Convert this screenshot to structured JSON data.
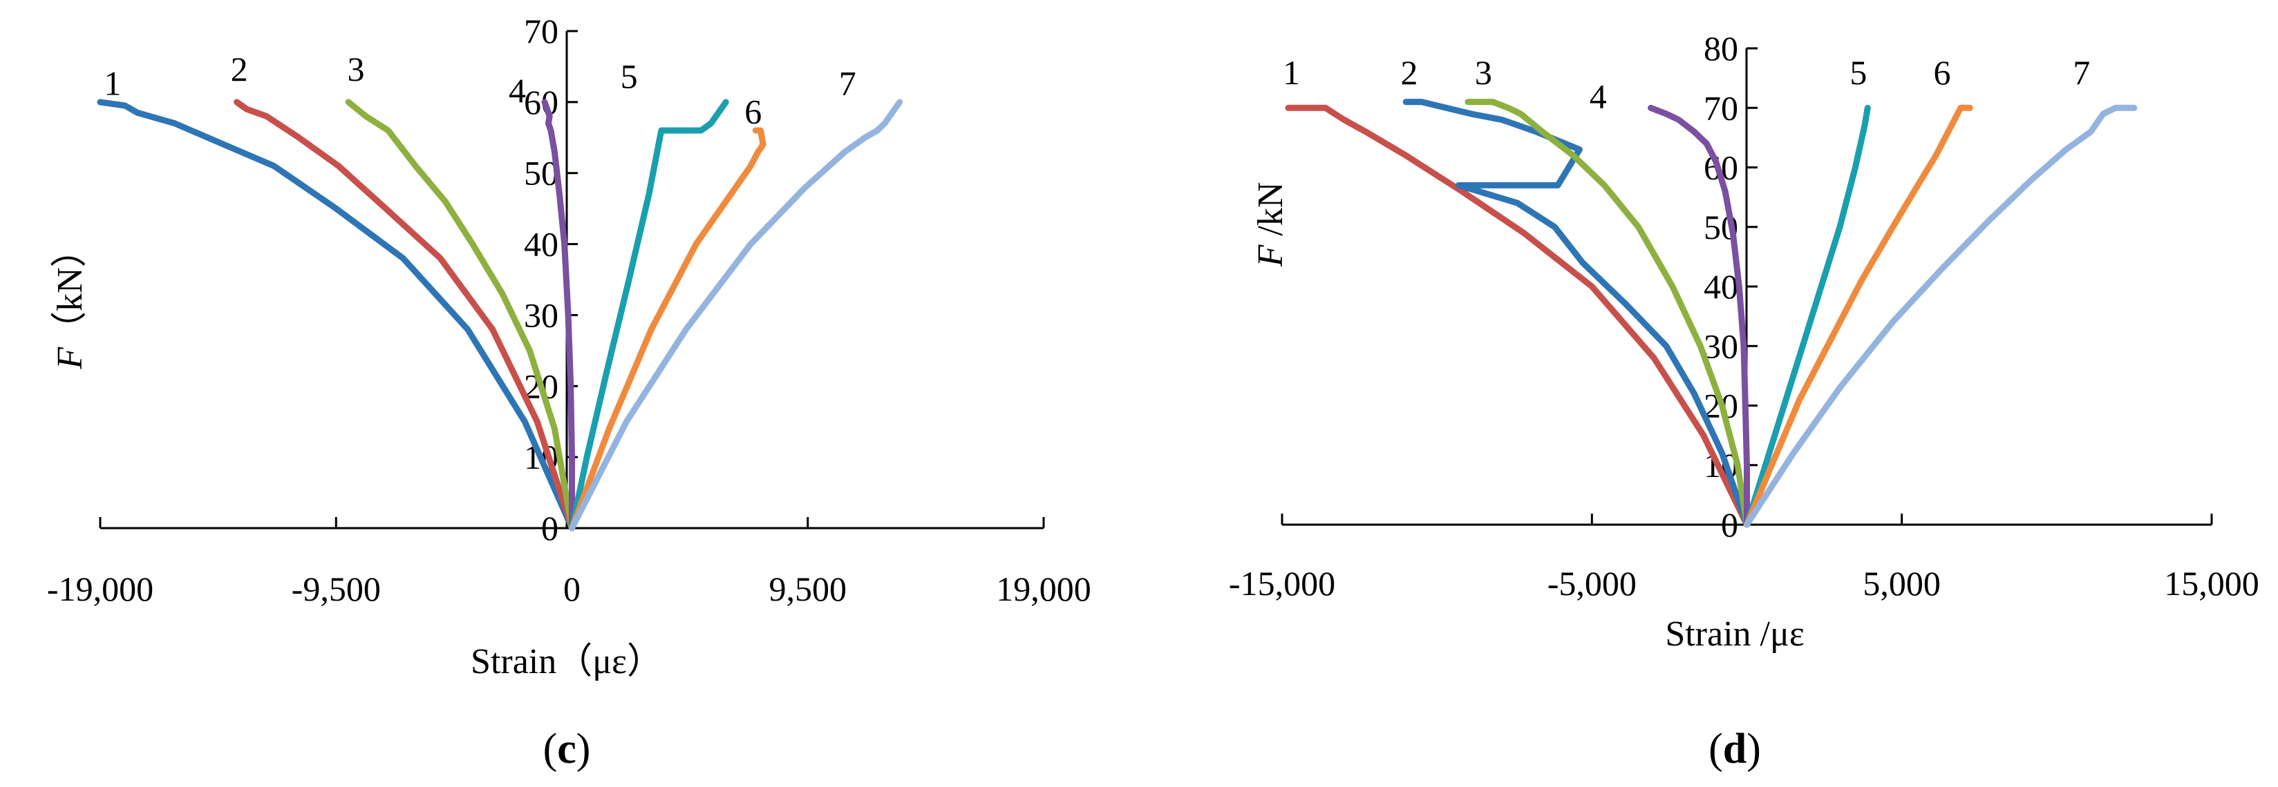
{
  "chart_data": [
    {
      "panel": "c",
      "type": "line",
      "ylabel_italic": "F",
      "ylabel_rest": "（kN）",
      "xlabel": "Strain（με）",
      "xlim": [
        -19000,
        19000
      ],
      "ylim": [
        0,
        70
      ],
      "x_ticks": [
        -19000,
        -9500,
        0,
        9500,
        19000
      ],
      "x_tick_labels": [
        "-19,000",
        "-9,500",
        "0",
        "9,500",
        "19,000"
      ],
      "y_ticks": [
        0,
        10,
        20,
        30,
        40,
        50,
        60,
        70
      ],
      "y_tick_labels": [
        "0",
        "10",
        "20",
        "30",
        "40",
        "50",
        "60",
        "70"
      ],
      "series": [
        {
          "label": "1",
          "color": "#2e75b6",
          "label_at": [
            -18500,
            61
          ],
          "x": [
            0,
            -1900,
            -4200,
            -6800,
            -9500,
            -12000,
            -14000,
            -16000,
            -17500,
            -18000,
            -19000
          ],
          "y": [
            0,
            15,
            28,
            38,
            45,
            51,
            54,
            57,
            58.5,
            59.5,
            60
          ]
        },
        {
          "label": "2",
          "color": "#c8504b",
          "label_at": [
            -13400,
            63
          ],
          "x": [
            0,
            -1400,
            -3200,
            -5300,
            -7500,
            -9400,
            -11000,
            -12300,
            -13100,
            -13500
          ],
          "y": [
            0,
            15,
            28,
            38,
            45,
            51,
            55,
            58,
            59,
            60
          ]
        },
        {
          "label": "3",
          "color": "#8db03f",
          "label_at": [
            -8700,
            63
          ],
          "x": [
            0,
            -700,
            -1700,
            -2800,
            -4000,
            -5100,
            -6300,
            -7400,
            -8300,
            -9000
          ],
          "y": [
            0,
            14,
            25,
            33,
            40,
            46,
            51,
            56,
            58,
            60
          ]
        },
        {
          "label": "4",
          "color": "#7b4fa1",
          "label_at": [
            -2200,
            60
          ],
          "x": [
            0,
            0,
            -50,
            -150,
            -300,
            -500,
            -700,
            -850,
            -950,
            -900,
            -1100
          ],
          "y": [
            0,
            10,
            20,
            30,
            40,
            47,
            53,
            56,
            57,
            58,
            60
          ]
        },
        {
          "label": "5",
          "color": "#1a9faf",
          "label_at": [
            2300,
            62
          ],
          "x": [
            0,
            600,
            1400,
            2300,
            3100,
            3600,
            4400,
            5200,
            5600,
            6200
          ],
          "y": [
            0,
            10,
            22,
            35,
            47,
            56,
            56,
            56,
            57,
            60
          ]
        },
        {
          "label": "6",
          "color": "#f08a3c",
          "label_at": [
            7300,
            57
          ],
          "x": [
            0,
            1500,
            3200,
            5000,
            6400,
            7200,
            7500,
            7700,
            7600,
            7400
          ],
          "y": [
            0,
            14,
            28,
            40,
            47,
            51,
            53,
            54,
            56,
            56
          ]
        },
        {
          "label": "7",
          "color": "#94b4df",
          "label_at": [
            11100,
            61
          ],
          "x": [
            0,
            2200,
            4600,
            7200,
            9400,
            11000,
            11800,
            12300,
            12600,
            12900,
            13200
          ],
          "y": [
            0,
            15,
            28,
            40,
            48,
            53,
            55,
            56,
            57,
            58.5,
            60
          ]
        }
      ]
    },
    {
      "panel": "d",
      "type": "line",
      "ylabel_italic": "F",
      "ylabel_rest": " /kN",
      "xlabel": "Strain /με",
      "xlim": [
        -15000,
        15000
      ],
      "ylim": [
        0,
        80
      ],
      "x_ticks": [
        -15000,
        -5000,
        5000,
        15000
      ],
      "x_tick_labels": [
        "-15,000",
        "-5,000",
        "5,000",
        "15,000"
      ],
      "y_ticks": [
        0,
        10,
        20,
        30,
        40,
        50,
        60,
        70,
        80
      ],
      "y_tick_labels": [
        "0",
        "10",
        "20",
        "30",
        "40",
        "50",
        "60",
        "70",
        "80"
      ],
      "series": [
        {
          "label": "1",
          "color": "#c8504b",
          "label_at": [
            -14700,
            74
          ],
          "x": [
            0,
            -1400,
            -3000,
            -5000,
            -7200,
            -9200,
            -11000,
            -12300,
            -13000,
            -13600,
            -14300,
            -14800
          ],
          "y": [
            0,
            15,
            28,
            40,
            49,
            56,
            62,
            66,
            68,
            70,
            70,
            70
          ]
        },
        {
          "label": "2",
          "color": "#2e75b6",
          "label_at": [
            -10900,
            74
          ],
          "x": [
            0,
            -800,
            -1700,
            -2600,
            -3900,
            -5300,
            -6200,
            -7400,
            -9300,
            -7600,
            -6100,
            -5400,
            -6800,
            -7900,
            -8900,
            -9700,
            -10500,
            -11000
          ],
          "y": [
            0,
            12,
            22,
            30,
            37,
            44,
            50,
            54,
            57,
            57,
            57,
            63,
            66,
            68,
            69,
            70,
            71,
            71
          ]
        },
        {
          "label": "3",
          "color": "#8db03f",
          "label_at": [
            -8500,
            74
          ],
          "x": [
            0,
            -300,
            -800,
            -1500,
            -2400,
            -3500,
            -4600,
            -5600,
            -6600,
            -7300,
            -7700,
            -8200,
            -9000
          ],
          "y": [
            0,
            10,
            20,
            30,
            40,
            50,
            57,
            62,
            66,
            69,
            70,
            71,
            71
          ]
        },
        {
          "label": "4",
          "color": "#7b4fa1",
          "label_at": [
            -4800,
            70
          ],
          "x": [
            0,
            0,
            -50,
            -100,
            -250,
            -450,
            -700,
            -1000,
            -1300,
            -1700,
            -2200,
            -2600,
            -3100
          ],
          "y": [
            0,
            10,
            20,
            30,
            40,
            49,
            56,
            61,
            64,
            66,
            68,
            69,
            70
          ]
        },
        {
          "label": "5",
          "color": "#1a9faf",
          "label_at": [
            3600,
            74
          ],
          "x": [
            0,
            600,
            1200,
            1800,
            2400,
            3000,
            3500,
            3800,
            3900
          ],
          "y": [
            0,
            10,
            20,
            30,
            40,
            50,
            60,
            67,
            70
          ]
        },
        {
          "label": "6",
          "color": "#f08a3c",
          "label_at": [
            6300,
            74
          ],
          "x": [
            0,
            800,
            1700,
            2700,
            3700,
            4600,
            5400,
            6100,
            6600,
            6900,
            7200
          ],
          "y": [
            0,
            10,
            21,
            31,
            41,
            49,
            56,
            62,
            67,
            70,
            70
          ]
        },
        {
          "label": "7",
          "color": "#94b4df",
          "label_at": [
            10800,
            74
          ],
          "x": [
            0,
            1500,
            3000,
            4700,
            6300,
            7800,
            9200,
            10300,
            11100,
            11500,
            11900,
            12500
          ],
          "y": [
            0,
            12,
            23,
            34,
            43,
            51,
            58,
            63,
            66,
            69,
            70,
            70
          ]
        }
      ]
    }
  ],
  "panels": [
    {
      "label": "c"
    },
    {
      "label": "d"
    }
  ]
}
